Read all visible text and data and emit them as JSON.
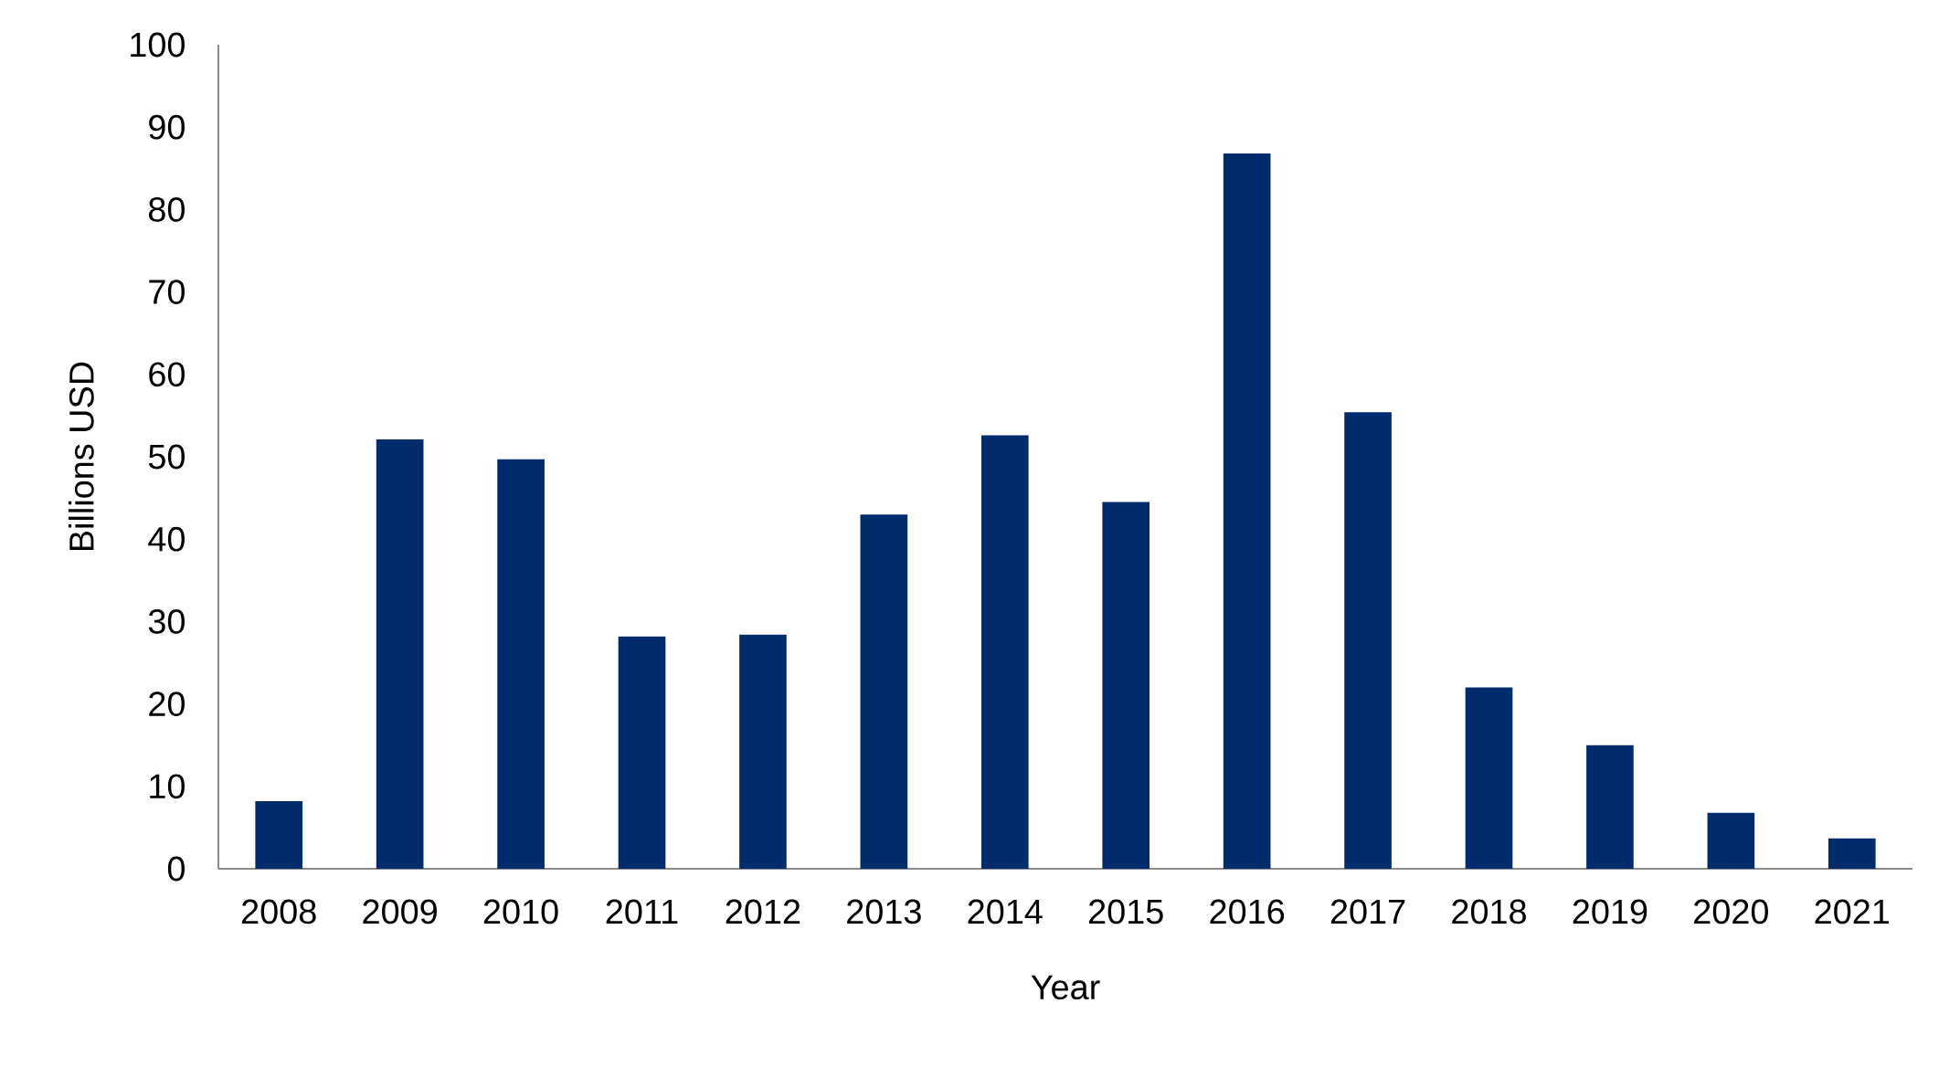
{
  "chart_data": {
    "type": "bar",
    "xlabel": "Year",
    "ylabel": "Billions USD",
    "categories": [
      "2008",
      "2009",
      "2010",
      "2011",
      "2012",
      "2013",
      "2014",
      "2015",
      "2016",
      "2017",
      "2018",
      "2019",
      "2020",
      "2021"
    ],
    "values": [
      8.2,
      52.1,
      49.7,
      28.2,
      28.4,
      43.0,
      52.6,
      44.5,
      86.8,
      55.4,
      22.0,
      15.0,
      6.8,
      3.7
    ],
    "color": "#002c6e",
    "ylim": [
      0,
      100
    ],
    "yticks": [
      0,
      10,
      20,
      30,
      40,
      50,
      60,
      70,
      80,
      90,
      100
    ]
  }
}
